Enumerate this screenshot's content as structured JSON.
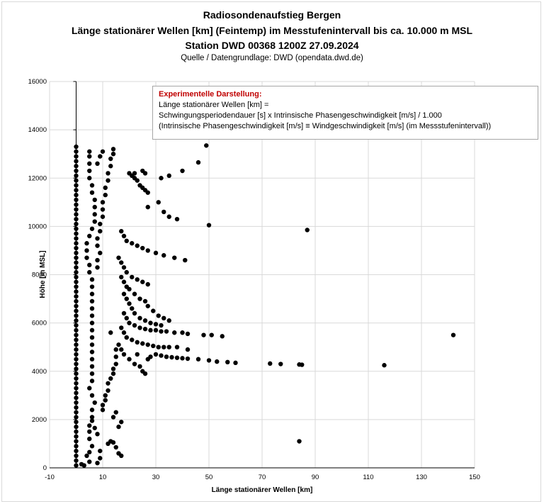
{
  "header": {
    "line1": "Radiosondenaufstieg Bergen",
    "line2": "Länge stationärer Wellen [km] (Feintemp) im Messtufenintervall bis ca. 10.000 m MSL",
    "line3": "Station DWD 00368 1200Z 27.09.2024",
    "source": "Quelle / Datengrundlage: DWD (opendata.dwd.de)"
  },
  "note": {
    "heading": "Experimentelle Darstellung:",
    "line1": "Länge stationärer Wellen [km] =",
    "line2": "Schwingungsperiodendauer [s] x Intrinsische Phasengeschwindigkeit [m/s]  / 1.000",
    "line3": "(Intrinsische Phasengeschwindigkeit [m/s] ≡ Windgeschwindigkeit [m/s] (im Messstufenintervall))",
    "heading_color": "#c00000"
  },
  "chart_data": {
    "type": "scatter",
    "xlabel": "Länge stationärer Wellen [km]",
    "ylabel": "Höhe [m MSL]",
    "xlim": [
      -10,
      150
    ],
    "ylim": [
      0,
      16000
    ],
    "xticks": [
      -10,
      10,
      30,
      50,
      70,
      90,
      110,
      130,
      150
    ],
    "yticks": [
      0,
      2000,
      4000,
      6000,
      8000,
      10000,
      12000,
      14000,
      16000
    ],
    "grid": true,
    "marker_color": "#000000",
    "points": [
      [
        0,
        100
      ],
      [
        0,
        300
      ],
      [
        0,
        500
      ],
      [
        0,
        700
      ],
      [
        0,
        900
      ],
      [
        0,
        1100
      ],
      [
        0,
        1300
      ],
      [
        0,
        1500
      ],
      [
        0,
        1700
      ],
      [
        0,
        1900
      ],
      [
        0,
        2100
      ],
      [
        0,
        2300
      ],
      [
        0,
        2500
      ],
      [
        0,
        2700
      ],
      [
        0,
        2900
      ],
      [
        0,
        3100
      ],
      [
        0,
        3300
      ],
      [
        0,
        3500
      ],
      [
        0,
        3700
      ],
      [
        0,
        3900
      ],
      [
        0,
        4100
      ],
      [
        0,
        4300
      ],
      [
        0,
        4500
      ],
      [
        0,
        4700
      ],
      [
        0,
        4900
      ],
      [
        0,
        5100
      ],
      [
        0,
        5300
      ],
      [
        0,
        5500
      ],
      [
        0,
        5700
      ],
      [
        0,
        5900
      ],
      [
        0,
        6100
      ],
      [
        0,
        6300
      ],
      [
        0,
        6500
      ],
      [
        0,
        6700
      ],
      [
        0,
        6900
      ],
      [
        0,
        7100
      ],
      [
        0,
        7300
      ],
      [
        0,
        7500
      ],
      [
        0,
        7700
      ],
      [
        0,
        7900
      ],
      [
        0,
        8100
      ],
      [
        0,
        8300
      ],
      [
        0,
        8500
      ],
      [
        0,
        8700
      ],
      [
        0,
        8900
      ],
      [
        0,
        9100
      ],
      [
        0,
        9300
      ],
      [
        0,
        9500
      ],
      [
        0,
        9700
      ],
      [
        0,
        9900
      ],
      [
        0,
        10100
      ],
      [
        0,
        10300
      ],
      [
        0,
        10500
      ],
      [
        0,
        10700
      ],
      [
        0,
        10900
      ],
      [
        0,
        11100
      ],
      [
        0,
        11300
      ],
      [
        0,
        11500
      ],
      [
        0,
        11700
      ],
      [
        0,
        11900
      ],
      [
        0,
        12100
      ],
      [
        0,
        12300
      ],
      [
        0,
        12500
      ],
      [
        0,
        12700
      ],
      [
        0,
        12900
      ],
      [
        0,
        13100
      ],
      [
        0,
        13300
      ],
      [
        2,
        150
      ],
      [
        3,
        100
      ],
      [
        5,
        250
      ],
      [
        4,
        500
      ],
      [
        5,
        650
      ],
      [
        6,
        900
      ],
      [
        5,
        1200
      ],
      [
        5,
        1500
      ],
      [
        5,
        1750
      ],
      [
        6,
        1950
      ],
      [
        7,
        1650
      ],
      [
        8,
        1400
      ],
      [
        6,
        2100
      ],
      [
        6,
        2400
      ],
      [
        7,
        2700
      ],
      [
        6,
        3000
      ],
      [
        5,
        3300
      ],
      [
        6,
        3600
      ],
      [
        6,
        3900
      ],
      [
        6,
        4200
      ],
      [
        6,
        4500
      ],
      [
        6,
        4800
      ],
      [
        6,
        5100
      ],
      [
        6,
        5400
      ],
      [
        6,
        5700
      ],
      [
        6,
        6000
      ],
      [
        6,
        6300
      ],
      [
        6,
        6600
      ],
      [
        6,
        6900
      ],
      [
        6,
        7200
      ],
      [
        6,
        7500
      ],
      [
        6,
        7800
      ],
      [
        5,
        8100
      ],
      [
        5,
        8400
      ],
      [
        4,
        8700
      ],
      [
        4,
        9000
      ],
      [
        4,
        9300
      ],
      [
        5,
        9600
      ],
      [
        6,
        9900
      ],
      [
        7,
        10200
      ],
      [
        7,
        10500
      ],
      [
        7,
        10800
      ],
      [
        7,
        11100
      ],
      [
        6,
        11400
      ],
      [
        6,
        11700
      ],
      [
        5,
        12000
      ],
      [
        5,
        12300
      ],
      [
        5,
        12600
      ],
      [
        5,
        12900
      ],
      [
        5,
        13100
      ],
      [
        8,
        200
      ],
      [
        9,
        400
      ],
      [
        9,
        700
      ],
      [
        10,
        2400
      ],
      [
        10,
        2600
      ],
      [
        11,
        2800
      ],
      [
        11,
        3000
      ],
      [
        12,
        3200
      ],
      [
        12,
        3500
      ],
      [
        13,
        3700
      ],
      [
        14,
        3900
      ],
      [
        14,
        4100
      ],
      [
        15,
        4300
      ],
      [
        15,
        4600
      ],
      [
        15,
        4900
      ],
      [
        13,
        5600
      ],
      [
        8,
        8300
      ],
      [
        8,
        8600
      ],
      [
        9,
        8900
      ],
      [
        8,
        9200
      ],
      [
        8,
        9500
      ],
      [
        9,
        9800
      ],
      [
        9,
        10100
      ],
      [
        10,
        10400
      ],
      [
        10,
        10700
      ],
      [
        10,
        11000
      ],
      [
        11,
        11300
      ],
      [
        11,
        11600
      ],
      [
        12,
        11900
      ],
      [
        12,
        12200
      ],
      [
        13,
        12500
      ],
      [
        13,
        12800
      ],
      [
        14,
        13000
      ],
      [
        14,
        13200
      ],
      [
        10,
        13100
      ],
      [
        9,
        12900
      ],
      [
        8,
        12600
      ],
      [
        12,
        1000
      ],
      [
        13,
        1100
      ],
      [
        14,
        1050
      ],
      [
        15,
        850
      ],
      [
        16,
        600
      ],
      [
        17,
        500
      ],
      [
        16,
        1700
      ],
      [
        17,
        1900
      ],
      [
        14,
        2100
      ],
      [
        15,
        2300
      ],
      [
        16,
        5100
      ],
      [
        17,
        4900
      ],
      [
        18,
        4700
      ],
      [
        20,
        4500
      ],
      [
        22,
        4300
      ],
      [
        24,
        4200
      ],
      [
        25,
        4000
      ],
      [
        26,
        3900
      ],
      [
        23,
        4700
      ],
      [
        27,
        4500
      ],
      [
        28,
        4600
      ],
      [
        30,
        4700
      ],
      [
        32,
        4650
      ],
      [
        34,
        4600
      ],
      [
        36,
        4580
      ],
      [
        38,
        4560
      ],
      [
        40,
        4540
      ],
      [
        42,
        4520
      ],
      [
        46,
        4500
      ],
      [
        50,
        4450
      ],
      [
        53,
        4400
      ],
      [
        57,
        4380
      ],
      [
        60,
        4350
      ],
      [
        73,
        4320
      ],
      [
        77,
        4300
      ],
      [
        84,
        4280
      ],
      [
        85,
        4270
      ],
      [
        116,
        4250
      ],
      [
        84,
        1100
      ],
      [
        17,
        5800
      ],
      [
        18,
        5600
      ],
      [
        19,
        5400
      ],
      [
        21,
        5300
      ],
      [
        23,
        5200
      ],
      [
        25,
        5150
      ],
      [
        27,
        5100
      ],
      [
        29,
        5050
      ],
      [
        31,
        5000
      ],
      [
        33,
        5000
      ],
      [
        35,
        5000
      ],
      [
        38,
        5000
      ],
      [
        42,
        4900
      ],
      [
        18,
        6400
      ],
      [
        19,
        6200
      ],
      [
        20,
        6000
      ],
      [
        22,
        5900
      ],
      [
        24,
        5800
      ],
      [
        26,
        5750
      ],
      [
        28,
        5700
      ],
      [
        30,
        5700
      ],
      [
        32,
        5650
      ],
      [
        34,
        5650
      ],
      [
        37,
        5600
      ],
      [
        40,
        5600
      ],
      [
        42,
        5550
      ],
      [
        48,
        5500
      ],
      [
        51,
        5500
      ],
      [
        55,
        5450
      ],
      [
        142,
        5500
      ],
      [
        18,
        7200
      ],
      [
        19,
        7000
      ],
      [
        20,
        6800
      ],
      [
        21,
        6600
      ],
      [
        22,
        6400
      ],
      [
        24,
        6200
      ],
      [
        26,
        6100
      ],
      [
        28,
        6000
      ],
      [
        30,
        5950
      ],
      [
        32,
        5900
      ],
      [
        17,
        7900
      ],
      [
        18,
        7700
      ],
      [
        19,
        7500
      ],
      [
        20,
        7400
      ],
      [
        22,
        7200
      ],
      [
        24,
        7000
      ],
      [
        26,
        6900
      ],
      [
        27,
        6700
      ],
      [
        29,
        6500
      ],
      [
        31,
        6300
      ],
      [
        33,
        6200
      ],
      [
        35,
        6100
      ],
      [
        16,
        8700
      ],
      [
        17,
        8500
      ],
      [
        18,
        8300
      ],
      [
        19,
        8100
      ],
      [
        21,
        7900
      ],
      [
        23,
        7800
      ],
      [
        25,
        7700
      ],
      [
        27,
        7600
      ],
      [
        17,
        9800
      ],
      [
        18,
        9600
      ],
      [
        19,
        9400
      ],
      [
        21,
        9300
      ],
      [
        23,
        9200
      ],
      [
        25,
        9100
      ],
      [
        27,
        9000
      ],
      [
        30,
        8900
      ],
      [
        33,
        8800
      ],
      [
        37,
        8700
      ],
      [
        41,
        8600
      ],
      [
        20,
        12200
      ],
      [
        21,
        12100
      ],
      [
        22,
        12000
      ],
      [
        23,
        11900
      ],
      [
        24,
        11700
      ],
      [
        25,
        11600
      ],
      [
        26,
        11500
      ],
      [
        27,
        11400
      ],
      [
        31,
        11000
      ],
      [
        33,
        10600
      ],
      [
        35,
        10400
      ],
      [
        38,
        10300
      ],
      [
        27,
        10800
      ],
      [
        22,
        12200
      ],
      [
        25,
        12300
      ],
      [
        26,
        12200
      ],
      [
        32,
        12000
      ],
      [
        35,
        12100
      ],
      [
        40,
        12300
      ],
      [
        46,
        12650
      ],
      [
        49,
        13350
      ],
      [
        50,
        10050
      ],
      [
        87,
        9850
      ]
    ]
  }
}
